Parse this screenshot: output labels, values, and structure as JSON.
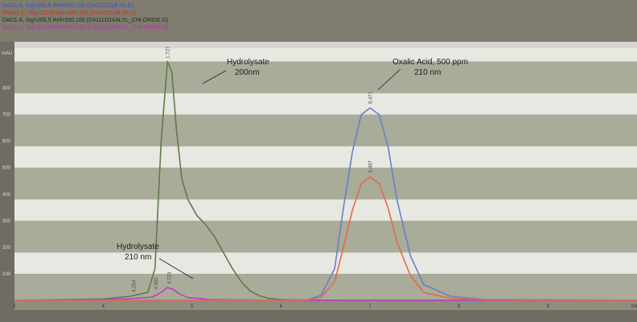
{
  "legend": [
    {
      "text": "DAD1 A, Sig=200,5 Ref=550,100 (D41111S1B 2A.D)",
      "color": "#3a4fd8"
    },
    {
      "text": "MWD1 C, Sig=210,8 Ref=360,100 (D41111S1B 2A.D)",
      "color": "#d42a2a"
    },
    {
      "text": "DAD1 A, Sig=200,5 Ref=550,100 (D41111OXALYL_CHLORIDE.D)",
      "color": "#2a2a2a"
    },
    {
      "text": "DAD1 C, Sig=210,8 Ref=360,100 (D41111OXALYL_CHLORIDE.D)",
      "color": "#c02ac0"
    }
  ],
  "chart_data": {
    "type": "line",
    "title": "",
    "xlabel": "",
    "ylabel": "mAU",
    "xlim": [
      3,
      10
    ],
    "ylim": [
      0,
      950
    ],
    "x_ticks": [
      "3",
      "4",
      "5",
      "6",
      "7",
      "8",
      "9",
      "min"
    ],
    "y_ticks": [
      "100",
      "200",
      "300",
      "400",
      "500",
      "600",
      "700",
      "800"
    ],
    "series": [
      {
        "color": "#5f7a4c",
        "x": [
          3.0,
          3.5,
          4.0,
          4.3,
          4.5,
          4.58,
          4.65,
          4.72,
          4.77,
          4.82,
          4.88,
          4.95,
          5.05,
          5.15,
          5.25,
          5.35,
          5.45,
          5.55,
          5.65,
          5.75,
          5.85,
          6.0,
          6.3,
          7.0,
          8.0,
          9.0,
          10.0
        ],
        "y": [
          0,
          2,
          5,
          15,
          30,
          120,
          600,
          900,
          860,
          650,
          460,
          380,
          320,
          285,
          240,
          180,
          120,
          70,
          35,
          18,
          8,
          3,
          1,
          0,
          0,
          0,
          0
        ]
      },
      {
        "color": "#c23cc2",
        "x": [
          3.0,
          3.5,
          4.0,
          4.3,
          4.55,
          4.65,
          4.72,
          4.78,
          4.85,
          4.95,
          5.2,
          6.0,
          7.0,
          10.0
        ],
        "y": [
          0,
          0,
          3,
          6,
          12,
          30,
          48,
          42,
          25,
          10,
          3,
          0,
          0,
          0
        ]
      },
      {
        "color": "#6a7ec8",
        "x": [
          3.0,
          6.0,
          6.3,
          6.45,
          6.6,
          6.7,
          6.8,
          6.9,
          7.0,
          7.1,
          7.2,
          7.3,
          7.45,
          7.6,
          7.9,
          8.3,
          10.0
        ],
        "y": [
          0,
          0,
          2,
          20,
          120,
          350,
          560,
          700,
          725,
          700,
          580,
          380,
          170,
          60,
          15,
          3,
          0
        ]
      },
      {
        "color": "#e26a4c",
        "x": [
          3.0,
          6.0,
          6.3,
          6.45,
          6.6,
          6.7,
          6.8,
          6.9,
          7.0,
          7.1,
          7.2,
          7.3,
          7.45,
          7.6,
          7.9,
          8.3,
          10.0
        ],
        "y": [
          0,
          0,
          2,
          12,
          70,
          200,
          340,
          440,
          465,
          440,
          350,
          220,
          95,
          30,
          8,
          2,
          0
        ]
      }
    ],
    "peak_labels": [
      "1.727",
      "6.471",
      "6.487",
      "4.723",
      "4.595",
      "4.264"
    ],
    "annotations": [
      {
        "text": "Hydrolysate"
      },
      {
        "text": "200nm"
      },
      {
        "text": "Oxalic Acid, 500 ppm"
      },
      {
        "text": "210 nm"
      },
      {
        "text": "Hydrolysate"
      },
      {
        "text": "210 nm"
      }
    ]
  },
  "colors": {
    "grid_band": "#ffffff",
    "plot_band": "#a8ac98"
  }
}
